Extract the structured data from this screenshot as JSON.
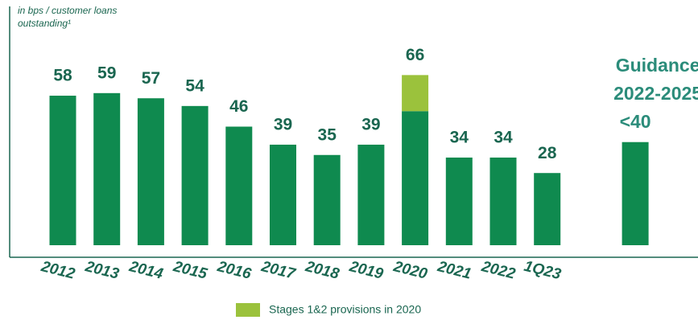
{
  "chart_data": {
    "type": "bar",
    "stacked": true,
    "y_label": [
      "in bps / customer loans",
      "outstanding¹"
    ],
    "categories": [
      "2012",
      "2013",
      "2014",
      "2015",
      "2016",
      "2017",
      "2018",
      "2019",
      "2020",
      "2021",
      "2022",
      "1Q23",
      null
    ],
    "series": [
      {
        "color": "#0f8a4f",
        "values": [
          58,
          59,
          57,
          54,
          46,
          39,
          35,
          39,
          52,
          34,
          34,
          28,
          40
        ]
      },
      {
        "name": "Stages 1&2 provisions in 2020",
        "color": "#9bc23c",
        "values": [
          null,
          null,
          null,
          null,
          null,
          null,
          null,
          null,
          14,
          null,
          null,
          null,
          null
        ]
      }
    ],
    "bar_labels": [
      "58",
      "59",
      "57",
      "54",
      "46",
      "39",
      "35",
      "39",
      "66",
      "34",
      "34",
      "28",
      "<40"
    ],
    "annotation": [
      "Guidance",
      "2022-2025"
    ],
    "ylim": [
      0,
      92
    ]
  }
}
